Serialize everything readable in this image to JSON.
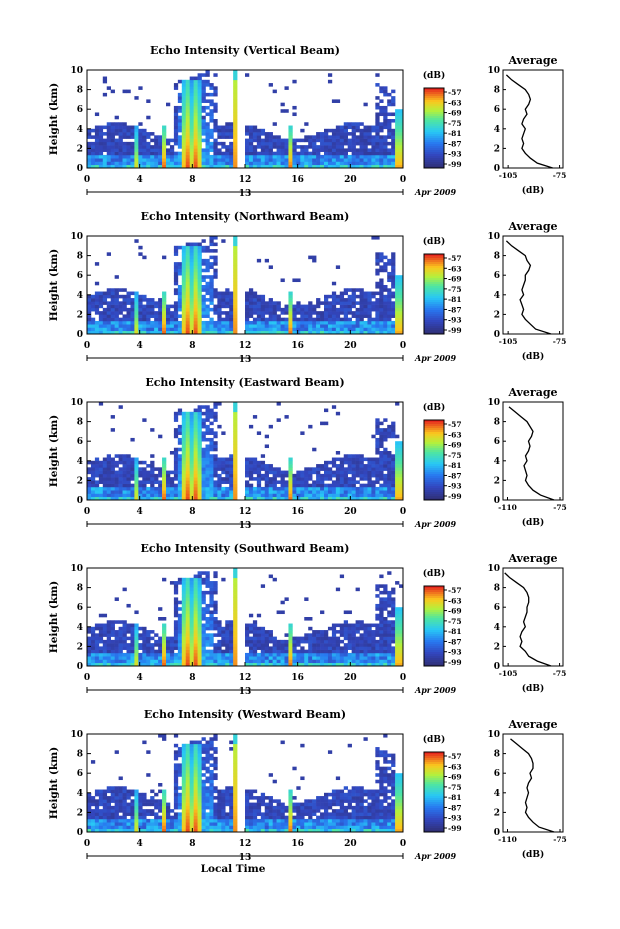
{
  "x_axis": {
    "label": "Local Time",
    "ticks": [
      "0",
      "4",
      "8",
      "12",
      "16",
      "20",
      "0"
    ],
    "day_mark": "13",
    "date_label": "Apr 2009"
  },
  "average_title": "Average",
  "average_xlabel": "(dB)",
  "colorbar": {
    "unit": "(dB)",
    "ticks": [
      "-57",
      "-63",
      "-69",
      "-75",
      "-81",
      "-87",
      "-93",
      "-99"
    ]
  },
  "chart_data": [
    {
      "type": "heatmap",
      "title": "Echo Intensity (Vertical Beam)",
      "xlabel": "",
      "ylabel": "Height (km)",
      "xlim": [
        0,
        24
      ],
      "ylim": [
        0,
        10
      ],
      "yticks": [
        "0",
        "2",
        "4",
        "6",
        "8",
        "10"
      ],
      "value_range_db": [
        -99,
        -57
      ],
      "average_profile": {
        "x_ticks": [
          "-105",
          "-75"
        ],
        "xlim": [
          -108,
          -73
        ],
        "heights_km": [
          0,
          0.5,
          1,
          1.5,
          2,
          2.5,
          3,
          3.5,
          4,
          4.5,
          5,
          5.5,
          6,
          6.5,
          7,
          7.5,
          8,
          8.5,
          9,
          9.5
        ],
        "values_db": [
          -79,
          -88,
          -92,
          -95,
          -97,
          -96,
          -97,
          -96,
          -95,
          -97,
          -96,
          -94,
          -95,
          -93,
          -92,
          -93,
          -95,
          -99,
          -103,
          -106
        ]
      }
    },
    {
      "type": "heatmap",
      "title": "Echo Intensity (Northward Beam)",
      "xlabel": "",
      "ylabel": "Height (km)",
      "xlim": [
        0,
        24
      ],
      "ylim": [
        0,
        10
      ],
      "yticks": [
        "0",
        "2",
        "4",
        "6",
        "8",
        "10"
      ],
      "value_range_db": [
        -99,
        -57
      ],
      "average_profile": {
        "x_ticks": [
          "-105",
          "-75"
        ],
        "xlim": [
          -108,
          -73
        ],
        "heights_km": [
          0,
          0.5,
          1,
          1.5,
          2,
          2.5,
          3,
          3.5,
          4,
          4.5,
          5,
          5.5,
          6,
          6.5,
          7,
          7.5,
          8,
          8.5,
          9,
          9.5
        ],
        "values_db": [
          -80,
          -89,
          -92,
          -95,
          -97,
          -96,
          -97,
          -98,
          -96,
          -97,
          -96,
          -95,
          -95,
          -93,
          -92,
          -94,
          -95,
          -99,
          -103,
          -106
        ]
      }
    },
    {
      "type": "heatmap",
      "title": "Echo Intensity (Eastward Beam)",
      "xlabel": "",
      "ylabel": "Height (km)",
      "xlim": [
        0,
        24
      ],
      "ylim": [
        0,
        10
      ],
      "yticks": [
        "0",
        "2",
        "4",
        "6",
        "8",
        "10"
      ],
      "value_range_db": [
        -99,
        -57
      ],
      "average_profile": {
        "x_ticks": [
          "-110",
          "-75"
        ],
        "xlim": [
          -113,
          -73
        ],
        "heights_km": [
          0,
          0.5,
          1,
          1.5,
          2,
          2.5,
          3,
          3.5,
          4,
          4.5,
          5,
          5.5,
          6,
          6.5,
          7,
          7.5,
          8,
          8.5,
          9,
          9.5
        ],
        "values_db": [
          -79,
          -88,
          -93,
          -96,
          -98,
          -97,
          -98,
          -99,
          -97,
          -98,
          -96,
          -95,
          -96,
          -94,
          -93,
          -95,
          -97,
          -101,
          -105,
          -109
        ]
      }
    },
    {
      "type": "heatmap",
      "title": "Echo Intensity (Southward Beam)",
      "xlabel": "",
      "ylabel": "Height (km)",
      "xlim": [
        0,
        24
      ],
      "ylim": [
        0,
        10
      ],
      "yticks": [
        "0",
        "2",
        "4",
        "6",
        "8",
        "10"
      ],
      "value_range_db": [
        -99,
        -57
      ],
      "average_profile": {
        "x_ticks": [
          "-105",
          "-75"
        ],
        "xlim": [
          -108,
          -73
        ],
        "heights_km": [
          0,
          0.5,
          1,
          1.5,
          2,
          2.5,
          3,
          3.5,
          4,
          4.5,
          5,
          5.5,
          6,
          6.5,
          7,
          7.5,
          8,
          8.5,
          9,
          9.5
        ],
        "values_db": [
          -80,
          -88,
          -93,
          -95,
          -98,
          -97,
          -98,
          -97,
          -95,
          -96,
          -95,
          -94,
          -94,
          -93,
          -93,
          -94,
          -96,
          -100,
          -104,
          -107
        ]
      }
    },
    {
      "type": "heatmap",
      "title": "Echo Intensity (Westward Beam)",
      "xlabel": "",
      "ylabel": "Height (km)",
      "xlim": [
        0,
        24
      ],
      "ylim": [
        0,
        10
      ],
      "yticks": [
        "0",
        "2",
        "4",
        "6",
        "8",
        "10"
      ],
      "value_range_db": [
        -99,
        -57
      ],
      "average_profile": {
        "x_ticks": [
          "-110",
          "-75"
        ],
        "xlim": [
          -113,
          -73
        ],
        "heights_km": [
          0,
          0.5,
          1,
          1.5,
          2,
          2.5,
          3,
          3.5,
          4,
          4.5,
          5,
          5.5,
          6,
          6.5,
          7,
          7.5,
          8,
          8.5,
          9,
          9.5
        ],
        "values_db": [
          -79,
          -89,
          -93,
          -96,
          -98,
          -97,
          -98,
          -97,
          -96,
          -97,
          -96,
          -94,
          -95,
          -93,
          -93,
          -94,
          -96,
          -100,
          -104,
          -108
        ]
      }
    }
  ]
}
